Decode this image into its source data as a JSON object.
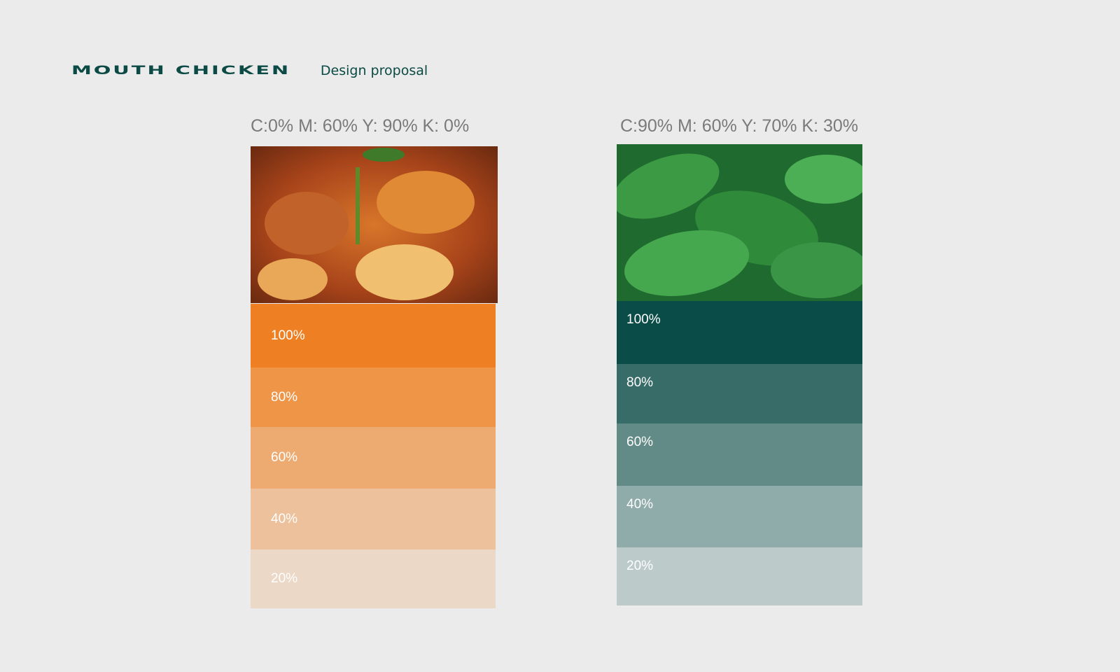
{
  "header": {
    "brand": "MOUTH CHICKEN",
    "subtitle": "Design proposal"
  },
  "palettes": [
    {
      "label": "C:0% M: 60% Y: 90% K: 0%",
      "swatches": [
        {
          "label": "100%",
          "color": "#ee7f22"
        },
        {
          "label": "80%",
          "color": "#ef9547"
        },
        {
          "label": "60%",
          "color": "#edab72"
        },
        {
          "label": "40%",
          "color": "#ecc19b"
        },
        {
          "label": "20%",
          "color": "#ebd8c6"
        }
      ]
    },
    {
      "label": "C:90% M: 60% Y: 70% K: 30%",
      "swatches": [
        {
          "label": "100%",
          "color": "#0a4c48"
        },
        {
          "label": "80%",
          "color": "#376c69"
        },
        {
          "label": "60%",
          "color": "#628b87"
        },
        {
          "label": "40%",
          "color": "#8fabaa"
        },
        {
          "label": "20%",
          "color": "#bccac9"
        }
      ]
    }
  ]
}
